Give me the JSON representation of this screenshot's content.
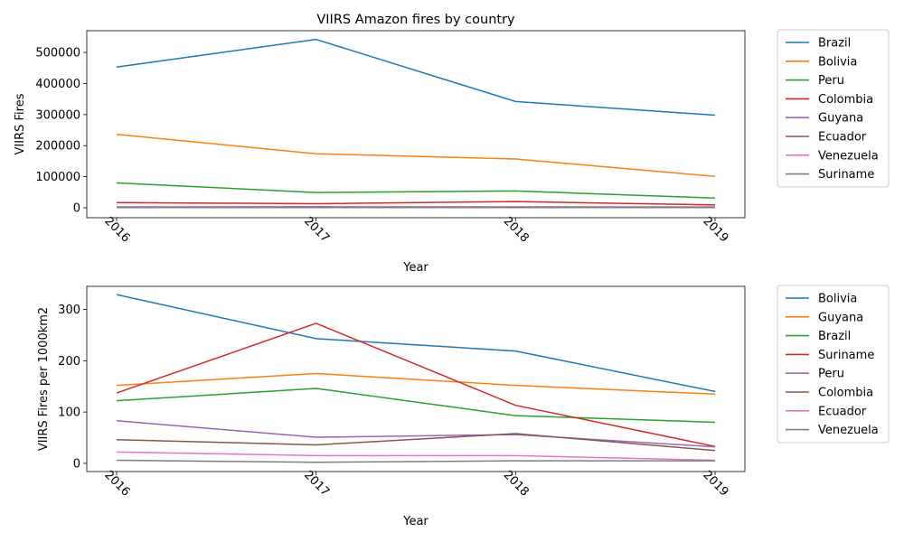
{
  "chart_data": [
    {
      "type": "line",
      "title": "VIIRS Amazon fires by country",
      "xlabel": "Year",
      "ylabel": "VIIRS Fires",
      "x": [
        "2016",
        "2017",
        "2018",
        "2019"
      ],
      "ylim": [
        -32000,
        570000
      ],
      "yticks": [
        0,
        100000,
        200000,
        300000,
        400000,
        500000
      ],
      "ytick_labels": [
        "0",
        "100000",
        "200000",
        "300000",
        "400000",
        "500000"
      ],
      "legend_position": "outside-right",
      "series": [
        {
          "name": "Brazil",
          "color": "#1f77b4",
          "values": [
            453000,
            542000,
            342000,
            298000
          ]
        },
        {
          "name": "Bolivia",
          "color": "#ff7f0e",
          "values": [
            236000,
            174000,
            157000,
            101000
          ]
        },
        {
          "name": "Peru",
          "color": "#2ca02c",
          "values": [
            80000,
            49000,
            54000,
            31000
          ]
        },
        {
          "name": "Colombia",
          "color": "#d62728",
          "values": [
            17000,
            13000,
            20000,
            9000
          ]
        },
        {
          "name": "Guyana",
          "color": "#9467bd",
          "values": [
            3000,
            3500,
            3000,
            2700
          ]
        },
        {
          "name": "Ecuador",
          "color": "#8c564b",
          "values": [
            2500,
            2000,
            2500,
            1800
          ]
        },
        {
          "name": "Venezuela",
          "color": "#e377c2",
          "values": [
            2000,
            1600,
            1800,
            1200
          ]
        },
        {
          "name": "Suriname",
          "color": "#7f7f7f",
          "values": [
            1000,
            800,
            900,
            700
          ]
        }
      ]
    },
    {
      "type": "line",
      "title": "",
      "xlabel": "Year",
      "ylabel": "VIIRS Fires per 1000km2",
      "x": [
        "2016",
        "2017",
        "2018",
        "2019"
      ],
      "ylim": [
        -16,
        345
      ],
      "yticks": [
        0,
        100,
        200,
        300
      ],
      "ytick_labels": [
        "0",
        "100",
        "200",
        "300"
      ],
      "legend_position": "outside-right",
      "series": [
        {
          "name": "Bolivia",
          "color": "#1f77b4",
          "values": [
            329,
            243,
            219,
            140
          ]
        },
        {
          "name": "Guyana",
          "color": "#ff7f0e",
          "values": [
            152,
            175,
            152,
            135
          ]
        },
        {
          "name": "Brazil",
          "color": "#2ca02c",
          "values": [
            122,
            146,
            93,
            80
          ]
        },
        {
          "name": "Suriname",
          "color": "#d62728",
          "values": [
            137,
            273,
            113,
            33
          ]
        },
        {
          "name": "Peru",
          "color": "#9467bd",
          "values": [
            83,
            51,
            56,
            32
          ]
        },
        {
          "name": "Colombia",
          "color": "#8c564b",
          "values": [
            46,
            36,
            58,
            25
          ]
        },
        {
          "name": "Ecuador",
          "color": "#e377c2",
          "values": [
            22,
            15,
            15,
            6
          ]
        },
        {
          "name": "Venezuela",
          "color": "#7f7f7f",
          "values": [
            6,
            2,
            5,
            5
          ]
        }
      ]
    }
  ]
}
